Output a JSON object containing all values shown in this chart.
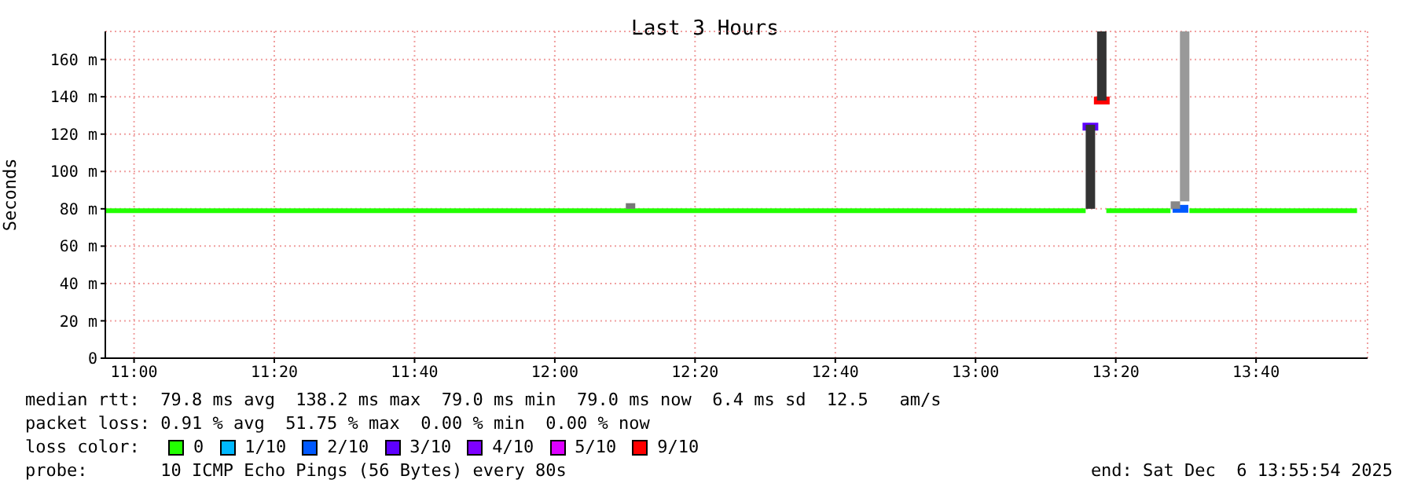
{
  "chart_data": {
    "type": "line",
    "title": "Last 3 Hours",
    "ylabel": "Seconds",
    "legend_title": "loss color:",
    "legend": "bottom",
    "grid": true,
    "xlim": [
      10.9317,
      13.9317
    ],
    "xticks": [
      {
        "value": 11,
        "label": "11:00"
      },
      {
        "value": 11.3333,
        "label": "11:20"
      },
      {
        "value": 11.6667,
        "label": "11:40"
      },
      {
        "value": 12,
        "label": "12:00"
      },
      {
        "value": 12.3333,
        "label": "12:20"
      },
      {
        "value": 12.6667,
        "label": "12:40"
      },
      {
        "value": 13,
        "label": "13:00"
      },
      {
        "value": 13.3333,
        "label": "13:20"
      },
      {
        "value": 13.6667,
        "label": "13:40"
      }
    ],
    "ylim": [
      0,
      175
    ],
    "yticks": [
      0,
      {
        "value": 20,
        "label": "20 m"
      },
      {
        "value": 40,
        "label": "40 m"
      },
      {
        "value": 60,
        "label": "60 m"
      },
      {
        "value": 80,
        "label": "80 m"
      },
      {
        "value": 100,
        "label": "100 m"
      },
      {
        "value": 120,
        "label": "120 m"
      },
      {
        "value": 140,
        "label": "140 m"
      },
      {
        "value": 160,
        "label": "160 m"
      }
    ],
    "series": [
      {
        "type": "bar",
        "colors": [
          "#777777",
          "#333333",
          "#333333",
          "#888888",
          "#999999"
        ],
        "x": [
          12.18,
          13.273,
          13.3,
          13.475,
          13.497
        ],
        "base": [
          80,
          80,
          138,
          80,
          84
        ],
        "values": [
          3,
          45,
          37,
          4,
          91
        ]
      },
      {
        "name": "0",
        "color": "#22ff00",
        "x": [
          10.9317,
          13.2617,
          13.27,
          13.3108,
          13.4633,
          13.47,
          13.5083,
          13.9067
        ],
        "values": [
          79,
          79,
          null,
          79,
          79,
          null,
          79,
          79
        ]
      },
      {
        "type": "scatter",
        "name": "1/10",
        "color": "#00b8ff"
      },
      {
        "type": "scatter",
        "name": "2/10",
        "color": "#0059ff",
        "x": [
          13.487
        ],
        "values": [
          80
        ]
      },
      {
        "type": "scatter",
        "name": "3/10",
        "color": "#5e00ff",
        "x": [
          13.273
        ],
        "values": [
          124
        ]
      },
      {
        "type": "scatter",
        "name": "4/10",
        "color": "#7e00ff"
      },
      {
        "type": "scatter",
        "name": "5/10",
        "color": "#dd00ff"
      },
      {
        "type": "scatter",
        "name": "9/10",
        "color": "#ff0000",
        "x": [
          13.3
        ],
        "values": [
          138
        ]
      }
    ],
    "annotations": [
      "median rtt:  79.8 ms avg  138.2 ms max  79.0 ms min  79.0 ms now  6.4 ms sd  12.5   am/s",
      "packet loss: 0.91 % avg  51.75 % max  0.00 % min  0.00 % now",
      "probe:       10 ICMP Echo Pings (56 Bytes) every 80s",
      "end: Sat Dec  6 13:55:54 2025"
    ]
  }
}
